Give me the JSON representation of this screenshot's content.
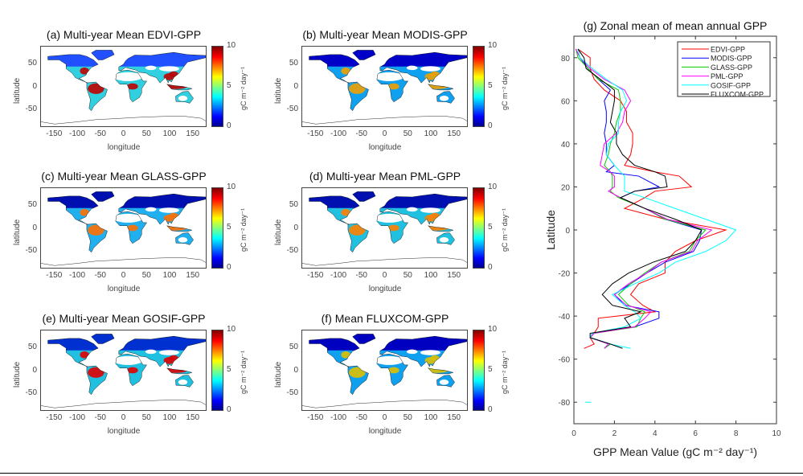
{
  "panels": [
    {
      "title": "(a) Multi-year Mean EDVI-GPP",
      "tropic_color": "#c00000",
      "mid_color": "#30d0e0",
      "boreal_color": "#2050ff"
    },
    {
      "title": "(b) Multi-year Mean MODIS-GPP",
      "tropic_color": "#f0a000",
      "mid_color": "#10a0f0",
      "boreal_color": "#0000c8"
    },
    {
      "title": "(c) Multi-year Mean GLASS-GPP",
      "tropic_color": "#ff7000",
      "mid_color": "#20b0f0",
      "boreal_color": "#0010b0"
    },
    {
      "title": "(d) Multi-year Mean PML-GPP",
      "tropic_color": "#ff8000",
      "mid_color": "#20c0e0",
      "boreal_color": "#0010b0"
    },
    {
      "title": "(e) Multi-year Mean GOSIF-GPP",
      "tropic_color": "#e00000",
      "mid_color": "#20c0e0",
      "boreal_color": "#0030d0"
    },
    {
      "title": "(f) Mean FLUXCOM-GPP",
      "tropic_color": "#e0c000",
      "mid_color": "#10a0f0",
      "boreal_color": "#0000c0"
    }
  ],
  "map_axes": {
    "xlabel": "longitude",
    "ylabel": "latitude",
    "xticks": [
      "-150",
      "-100",
      "-50",
      "0",
      "50",
      "100",
      "150"
    ],
    "yticks": [
      "50",
      "0",
      "-50"
    ],
    "colorbar_ticks": [
      "10",
      "5",
      "0"
    ],
    "colorbar_label": "gC m⁻² day⁻¹"
  },
  "chart_data": {
    "type": "line",
    "title": "(g) Zonal mean of mean annual GPP",
    "xlabel": "GPP Mean Value (gC m⁻² day⁻¹)",
    "ylabel": "Latitude",
    "xlim": [
      0,
      10
    ],
    "ylim": [
      -90,
      90
    ],
    "xticks": [
      "0",
      "2",
      "4",
      "6",
      "8",
      "10"
    ],
    "yticks": [
      "80",
      "60",
      "40",
      "20",
      "0",
      "-20",
      "-40",
      "-60",
      "-80"
    ],
    "legend_position": "top-right",
    "latitude": [
      84,
      80,
      75,
      70,
      65,
      60,
      55,
      50,
      45,
      40,
      35,
      30,
      27,
      25,
      20,
      18,
      15,
      10,
      5,
      0,
      -5,
      -10,
      -15,
      -20,
      -25,
      -30,
      -35,
      -38,
      -41,
      -45,
      -48,
      -50,
      -53,
      -55
    ],
    "series": [
      {
        "name": "EDVI-GPP",
        "color": "#ff0000",
        "values": [
          0.2,
          0.8,
          0.8,
          1.0,
          1.5,
          2.3,
          2.6,
          2.6,
          2.9,
          2.9,
          2.8,
          2.5,
          4.0,
          5.2,
          5.8,
          4.0,
          3.5,
          2.5,
          4.5,
          7.5,
          6.0,
          5.0,
          4.5,
          4.5,
          3.2,
          2.8,
          3.4,
          4.0,
          1.2,
          1.2,
          1.0,
          0.8,
          1.0,
          0.5
        ]
      },
      {
        "name": "MODIS-GPP",
        "color": "#0000ff",
        "values": [
          0.1,
          0.3,
          0.7,
          1.2,
          1.8,
          1.5,
          1.6,
          1.6,
          1.5,
          1.6,
          1.6,
          2.0,
          1.6,
          3.2,
          4.2,
          3.0,
          2.3,
          3.5,
          4.5,
          6.3,
          6.2,
          5.9,
          4.5,
          3.6,
          2.8,
          2.0,
          2.5,
          4.2,
          4.2,
          3.0,
          0.9,
          0.8,
          1.8,
          1.5
        ]
      },
      {
        "name": "GLASS-GPP",
        "color": "#00cc00",
        "values": [
          0.1,
          0.2,
          0.7,
          1.2,
          2.2,
          2.3,
          2.3,
          2.1,
          2.0,
          1.8,
          1.7,
          1.5,
          1.8,
          1.9,
          1.9,
          1.8,
          2.2,
          3.5,
          4.5,
          6.5,
          6.0,
          5.7,
          4.3,
          3.5,
          2.8,
          2.2,
          2.7,
          3.5,
          3.3,
          3.1,
          1.0,
          0.8,
          1.8,
          1.5
        ]
      },
      {
        "name": "PML-GPP",
        "color": "#ff00ff",
        "values": [
          0.1,
          0.3,
          0.8,
          1.5,
          2.5,
          2.8,
          2.5,
          2.4,
          2.1,
          1.5,
          1.4,
          1.3,
          1.8,
          2.0,
          2.0,
          1.7,
          2.3,
          3.5,
          4.6,
          6.8,
          6.1,
          5.8,
          4.3,
          3.6,
          2.7,
          2.0,
          2.6,
          3.8,
          3.5,
          3.0,
          1.0,
          0.8,
          1.7,
          1.5
        ]
      },
      {
        "name": "GOSIF-GPP",
        "color": "#00ffff",
        "values": [
          0.2,
          0.3,
          0.9,
          1.6,
          2.4,
          2.6,
          2.3,
          2.2,
          2.2,
          1.7,
          1.6,
          2.0,
          2.3,
          2.5,
          2.5,
          2.5,
          3.5,
          5.0,
          6.5,
          8.0,
          7.5,
          6.5,
          5.0,
          4.2,
          3.0,
          1.9,
          2.5,
          3.0,
          3.3,
          2.5,
          0.9,
          0.8,
          1.8,
          2.8
        ]
      },
      {
        "name": "FLUXCOM-GPP",
        "color": "#000000",
        "values": [
          0.2,
          0.5,
          0.6,
          1.3,
          2.0,
          2.0,
          1.9,
          1.8,
          2.1,
          2.1,
          2.4,
          3.0,
          4.0,
          4.5,
          4.6,
          3.0,
          2.3,
          3.5,
          5.0,
          6.3,
          6.0,
          5.5,
          3.9,
          2.7,
          1.9,
          1.4,
          1.9,
          3.3,
          2.5,
          2.8,
          0.8,
          0.8,
          1.8,
          2.4
        ]
      }
    ]
  }
}
